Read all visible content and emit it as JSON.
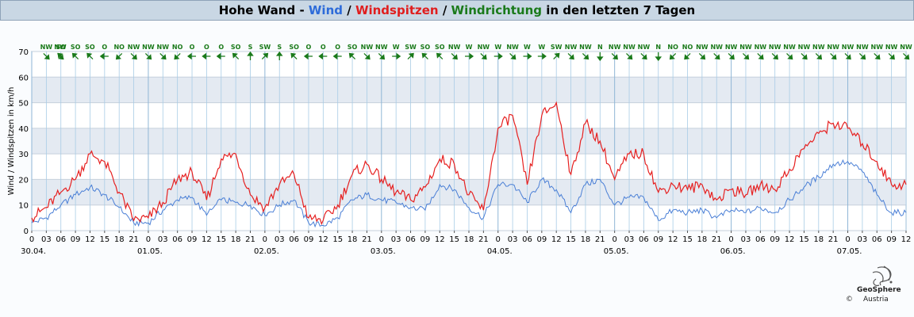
{
  "header": {
    "station": "Hohe Wand",
    "sep1": " - ",
    "wind_label": "Wind",
    "sep2": " / ",
    "gust_label": "Windspitzen",
    "sep3": " / ",
    "dir_label": "Windrichtung",
    "suffix": " in den letzten 7 Tagen"
  },
  "logo": {
    "name": "GeoSphere",
    "sub": "Austria",
    "copyright": "©"
  },
  "colors": {
    "wind": "#4a7fd6",
    "gust": "#e62020",
    "direction": "#1a7a1a",
    "band": "#e4eaf2",
    "grid": "#a8cce6"
  },
  "chart_data": {
    "type": "line",
    "ylabel": "Wind / Windspitzen in km/h",
    "ylim": [
      0,
      70
    ],
    "yticks": [
      0,
      10,
      20,
      30,
      40,
      50,
      60,
      70
    ],
    "x_unit": "hours",
    "xlim": [
      0,
      180
    ],
    "x_tick_labels": [
      "0",
      "03",
      "06",
      "09",
      "12",
      "15",
      "18",
      "21",
      "0",
      "03",
      "06",
      "09",
      "12",
      "15",
      "18",
      "21",
      "0",
      "03",
      "06",
      "09",
      "12",
      "15",
      "18",
      "21",
      "0",
      "03",
      "06",
      "09",
      "12",
      "15",
      "18",
      "21",
      "0",
      "03",
      "06",
      "09",
      "12",
      "15",
      "18",
      "21",
      "0",
      "03",
      "06",
      "09",
      "12",
      "15",
      "18",
      "21",
      "0",
      "03",
      "06",
      "09",
      "12",
      "15",
      "18",
      "21",
      "0",
      "03",
      "06",
      "09",
      "12"
    ],
    "date_labels": [
      "30.04.",
      "01.05.",
      "02.05.",
      "03.05.",
      "04.05.",
      "05.05.",
      "06.05.",
      "07.05."
    ],
    "direction_labels": [
      "NW",
      "NW",
      "SO",
      "SO",
      "SO",
      "O",
      "NO",
      "NW",
      "NW",
      "NW",
      "NO",
      "O",
      "O",
      "O",
      "SO",
      "S",
      "SW",
      "S",
      "SO",
      "O",
      "O",
      "O",
      "SO",
      "NW",
      "NW",
      "W",
      "SW",
      "SO",
      "SO",
      "NW",
      "W",
      "NW",
      "W",
      "NW",
      "W",
      "W",
      "SW",
      "NW",
      "NW",
      "N",
      "NW",
      "NW",
      "NW",
      "N",
      "NO",
      "NO",
      "NW",
      "NW",
      "NW",
      "NW",
      "NW",
      "NW",
      "NW",
      "NW",
      "NW",
      "NW",
      "NW",
      "NW",
      "NW",
      "NW",
      "NW"
    ],
    "series": [
      {
        "name": "Wind",
        "x": [
          0,
          3,
          6,
          9,
          12,
          15,
          18,
          21,
          24,
          27,
          30,
          33,
          36,
          39,
          42,
          45,
          48,
          51,
          54,
          57,
          60,
          63,
          66,
          69,
          72,
          75,
          78,
          81,
          84,
          87,
          90,
          93,
          96,
          99,
          102,
          105,
          108,
          111,
          114,
          117,
          120,
          123,
          126,
          129,
          132,
          135,
          138,
          141,
          144,
          147,
          150,
          153,
          156,
          159,
          162,
          165,
          168,
          171,
          174,
          177,
          180
        ],
        "values": [
          3,
          5,
          10,
          14,
          17,
          14,
          9,
          3,
          3,
          8,
          12,
          13,
          6,
          12,
          11,
          10,
          6,
          10,
          12,
          3,
          2,
          5,
          12,
          14,
          12,
          11,
          9,
          8,
          18,
          16,
          9,
          5,
          18,
          18,
          11,
          20,
          16,
          7,
          18,
          20,
          10,
          13,
          13,
          4,
          8,
          7,
          8,
          5,
          8,
          7,
          9,
          7,
          12,
          17,
          21,
          26,
          27,
          23,
          14,
          7,
          7
        ]
      },
      {
        "name": "Windspitzen",
        "x": [
          0,
          3,
          6,
          9,
          12,
          15,
          18,
          21,
          24,
          27,
          30,
          33,
          36,
          39,
          42,
          45,
          48,
          51,
          54,
          57,
          60,
          63,
          66,
          69,
          72,
          75,
          78,
          81,
          84,
          87,
          90,
          93,
          96,
          99,
          102,
          105,
          108,
          111,
          114,
          117,
          120,
          123,
          126,
          129,
          132,
          135,
          138,
          141,
          144,
          147,
          150,
          153,
          156,
          159,
          162,
          165,
          168,
          171,
          174,
          177,
          180
        ],
        "values": [
          5,
          9,
          15,
          20,
          30,
          27,
          15,
          4,
          5,
          11,
          20,
          23,
          12,
          28,
          30,
          14,
          9,
          18,
          22,
          5,
          4,
          10,
          22,
          26,
          20,
          15,
          12,
          17,
          28,
          26,
          14,
          8,
          40,
          45,
          18,
          45,
          50,
          22,
          42,
          35,
          20,
          30,
          30,
          15,
          18,
          16,
          18,
          12,
          16,
          14,
          18,
          16,
          24,
          32,
          38,
          42,
          40,
          34,
          27,
          18,
          18
        ]
      }
    ],
    "grid": true
  }
}
